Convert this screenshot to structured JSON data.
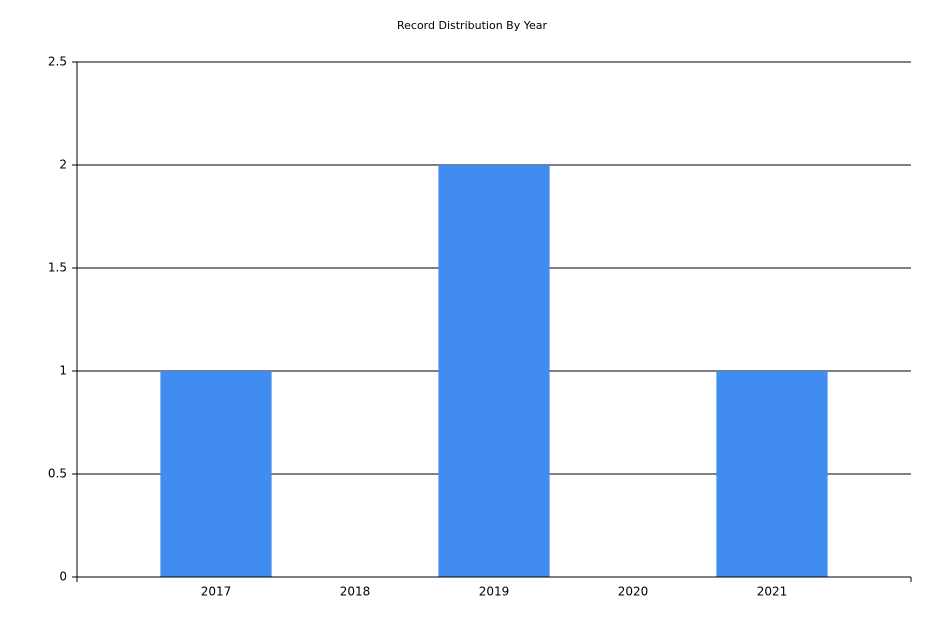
{
  "chart_data": {
    "type": "bar",
    "title": "Record Distribution By Year",
    "x": [
      2017,
      2018,
      2019,
      2020,
      2021
    ],
    "values": [
      1,
      0,
      2,
      0,
      1
    ],
    "color": "#418cf0",
    "xlim": [
      2016,
      2022
    ],
    "xticks": [
      2017,
      2018,
      2019,
      2020,
      2021
    ],
    "ylim": [
      0,
      2.5
    ],
    "yticks": [
      0,
      0.5,
      1,
      1.5,
      2,
      2.5
    ],
    "grid": true
  }
}
